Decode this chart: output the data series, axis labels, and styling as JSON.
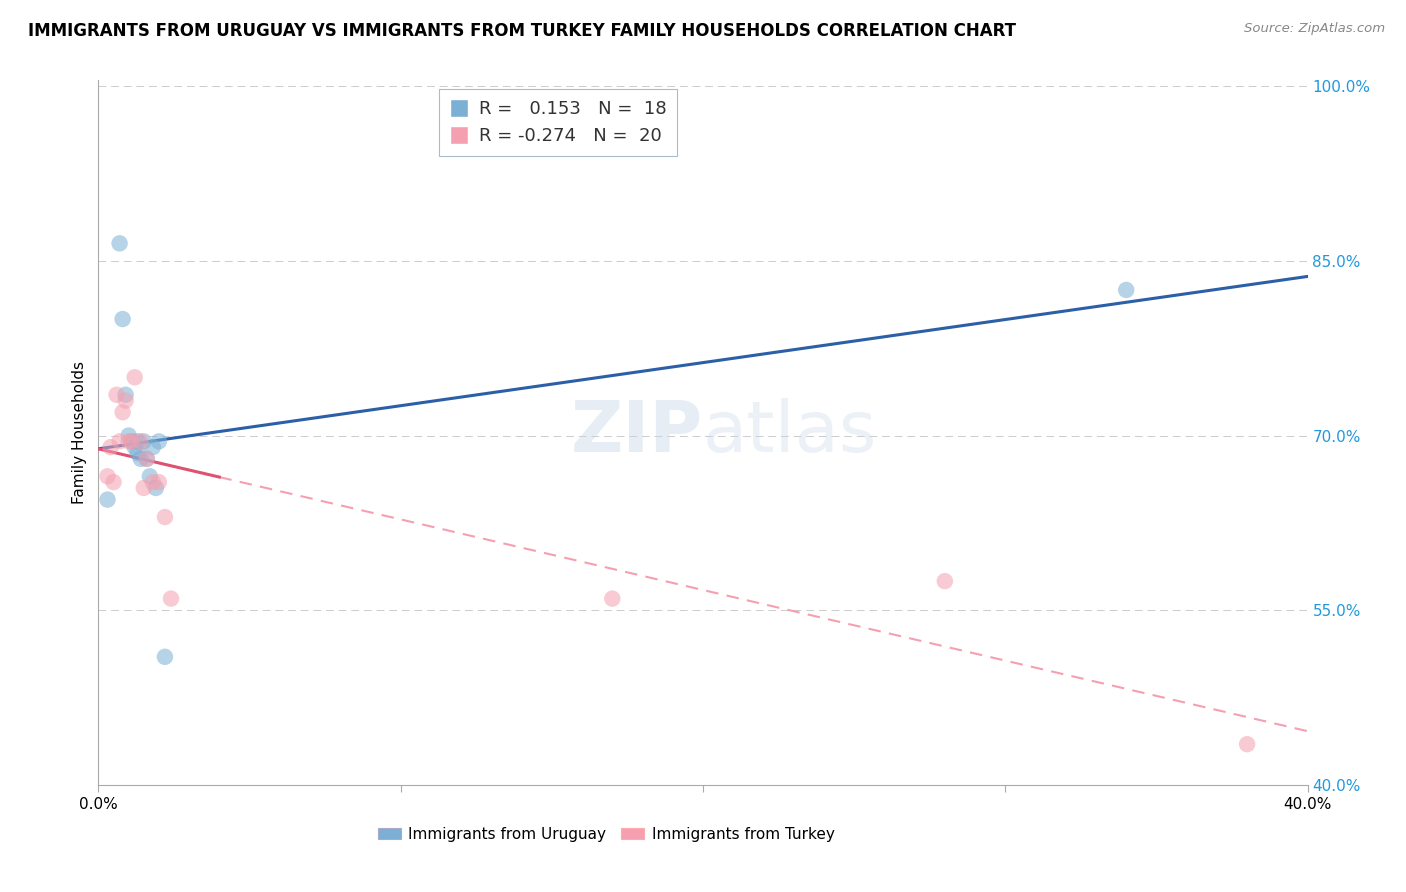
{
  "title": "IMMIGRANTS FROM URUGUAY VS IMMIGRANTS FROM TURKEY FAMILY HOUSEHOLDS CORRELATION CHART",
  "source": "Source: ZipAtlas.com",
  "ylabel": "Family Households",
  "xlim": [
    0.0,
    0.4
  ],
  "ylim": [
    0.4,
    1.005
  ],
  "yticks": [
    0.4,
    0.55,
    0.7,
    0.85,
    1.0
  ],
  "ytick_labels": [
    "40.0%",
    "55.0%",
    "70.0%",
    "85.0%",
    "100.0%"
  ],
  "xticks": [
    0.0,
    0.1,
    0.2,
    0.3,
    0.4
  ],
  "xtick_labels": [
    "0.0%",
    "",
    "",
    "",
    "40.0%"
  ],
  "r_uruguay": 0.153,
  "n_uruguay": 18,
  "r_turkey": -0.274,
  "n_turkey": 20,
  "color_uruguay": "#7BAFD4",
  "color_turkey": "#F4A0B0",
  "trendline_color_uruguay": "#2B5FA8",
  "trendline_color_turkey": "#E05070",
  "trendline_dashed_color": "#F4A0B0",
  "background_color": "#FFFFFF",
  "grid_color": "#CCCCCC",
  "watermark_text": "ZIPatlas",
  "scatter_uruguay_x": [
    0.003,
    0.007,
    0.008,
    0.009,
    0.01,
    0.011,
    0.012,
    0.013,
    0.013,
    0.014,
    0.015,
    0.016,
    0.017,
    0.018,
    0.019,
    0.02,
    0.022,
    0.34
  ],
  "scatter_uruguay_y": [
    0.645,
    0.865,
    0.8,
    0.735,
    0.7,
    0.695,
    0.69,
    0.695,
    0.685,
    0.68,
    0.695,
    0.68,
    0.665,
    0.69,
    0.655,
    0.695,
    0.51,
    0.825
  ],
  "scatter_turkey_x": [
    0.003,
    0.004,
    0.005,
    0.006,
    0.007,
    0.008,
    0.009,
    0.01,
    0.011,
    0.012,
    0.014,
    0.015,
    0.016,
    0.018,
    0.02,
    0.022,
    0.024,
    0.17,
    0.28,
    0.38
  ],
  "scatter_turkey_y": [
    0.665,
    0.69,
    0.66,
    0.735,
    0.695,
    0.72,
    0.73,
    0.695,
    0.695,
    0.75,
    0.695,
    0.655,
    0.68,
    0.66,
    0.66,
    0.63,
    0.56,
    0.56,
    0.575,
    0.435
  ],
  "solid_trend_turkey_xmax": 0.04,
  "legend_r_color": "#2299DD",
  "legend_n_color": "#2299DD"
}
